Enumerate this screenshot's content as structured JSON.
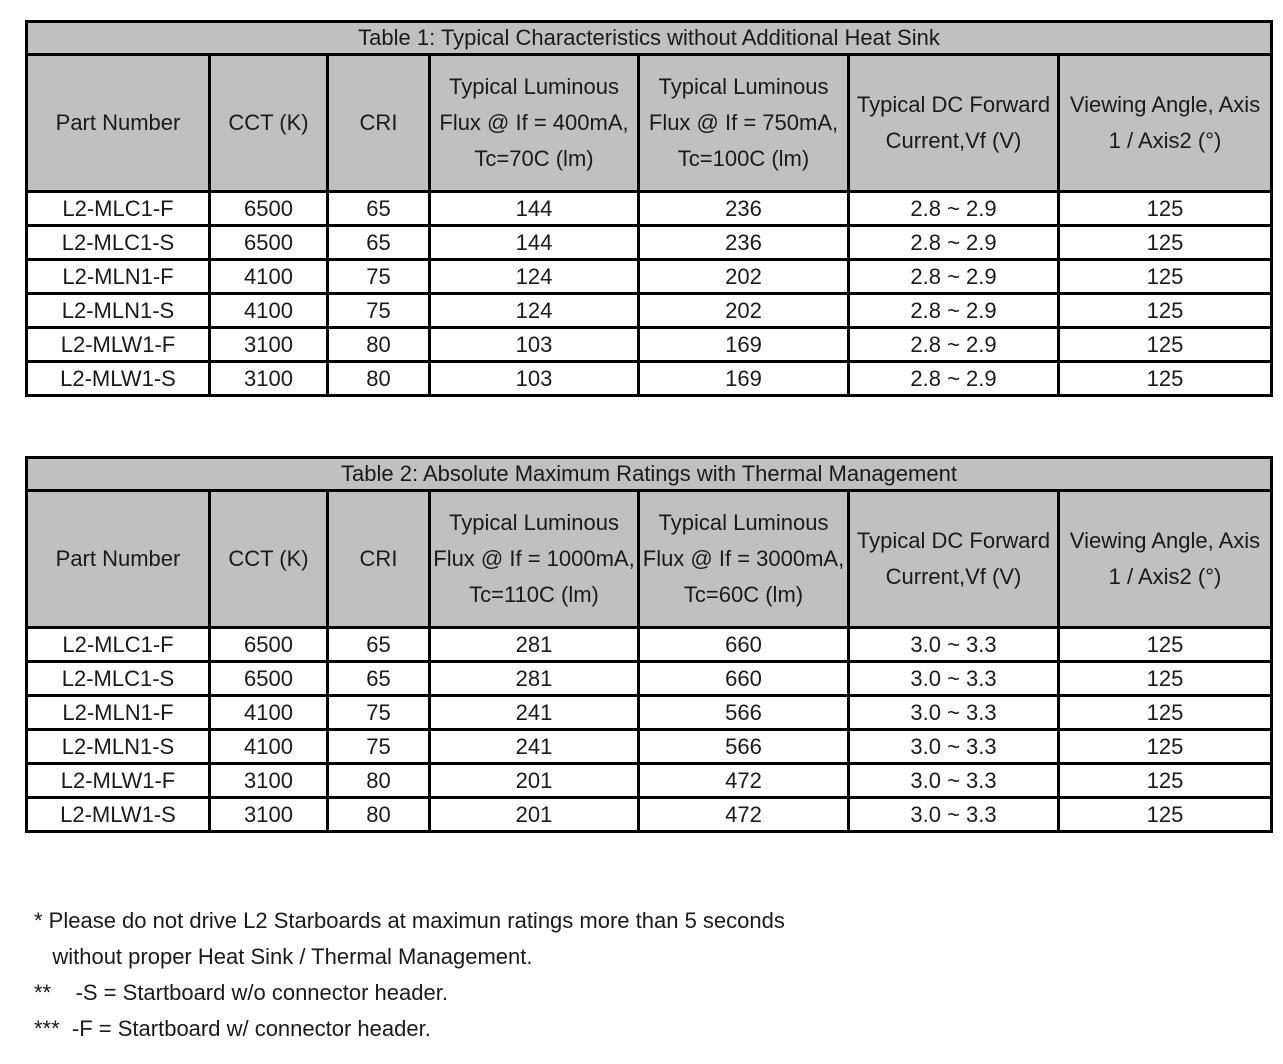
{
  "tables": [
    {
      "title": "Table 1: Typical Characteristics without Additional Heat Sink",
      "headers": [
        "Part Number",
        "CCT (K)",
        "CRI",
        "Typical Luminous Flux @ If = 400mA, Tc=70C (lm)",
        "Typical Luminous Flux @ If = 750mA, Tc=100C (lm)",
        "Typical DC Forward Current,Vf (V)",
        "Viewing Angle, Axis 1 / Axis2    (°)"
      ],
      "rows": [
        [
          "L2-MLC1-F",
          "6500",
          "65",
          "144",
          "236",
          "2.8 ~ 2.9",
          "125"
        ],
        [
          "L2-MLC1-S",
          "6500",
          "65",
          "144",
          "236",
          "2.8 ~ 2.9",
          "125"
        ],
        [
          "L2-MLN1-F",
          "4100",
          "75",
          "124",
          "202",
          "2.8 ~ 2.9",
          "125"
        ],
        [
          "L2-MLN1-S",
          "4100",
          "75",
          "124",
          "202",
          "2.8 ~ 2.9",
          "125"
        ],
        [
          "L2-MLW1-F",
          "3100",
          "80",
          "103",
          "169",
          "2.8 ~ 2.9",
          "125"
        ],
        [
          "L2-MLW1-S",
          "3100",
          "80",
          "103",
          "169",
          "2.8 ~ 2.9",
          "125"
        ]
      ]
    },
    {
      "title": "Table 2: Absolute Maximum Ratings with Thermal Management",
      "headers": [
        "Part Number",
        "CCT (K)",
        "CRI",
        "Typical Luminous Flux @ If = 1000mA, Tc=110C (lm)",
        "Typical Luminous Flux @ If = 3000mA, Tc=60C (lm)",
        "Typical DC Forward Current,Vf (V)",
        "Viewing Angle, Axis 1 / Axis2    (°)"
      ],
      "rows": [
        [
          "L2-MLC1-F",
          "6500",
          "65",
          "281",
          "660",
          "3.0 ~ 3.3",
          "125"
        ],
        [
          "L2-MLC1-S",
          "6500",
          "65",
          "281",
          "660",
          "3.0 ~ 3.3",
          "125"
        ],
        [
          "L2-MLN1-F",
          "4100",
          "75",
          "241",
          "566",
          "3.0 ~ 3.3",
          "125"
        ],
        [
          "L2-MLN1-S",
          "4100",
          "75",
          "241",
          "566",
          "3.0 ~ 3.3",
          "125"
        ],
        [
          "L2-MLW1-F",
          "3100",
          "80",
          "201",
          "472",
          "3.0 ~ 3.3",
          "125"
        ],
        [
          "L2-MLW1-S",
          "3100",
          "80",
          "201",
          "472",
          "3.0 ~ 3.3",
          "125"
        ]
      ]
    }
  ],
  "notes": [
    "* Please do not drive L2 Starboards at maximun ratings more than 5 seconds",
    "   without proper Heat Sink / Thermal Management.",
    "**    -S = Startboard w/o connector header.",
    "***  -F = Startboard w/ connector header."
  ]
}
